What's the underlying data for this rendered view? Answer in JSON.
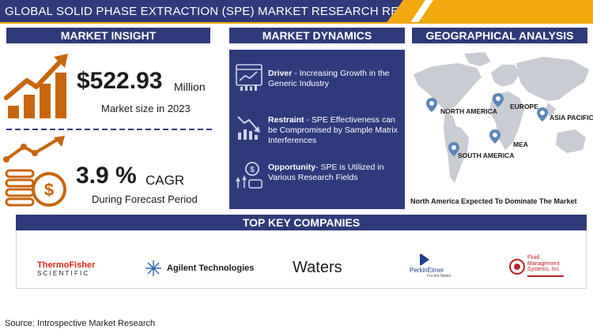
{
  "header": {
    "title": "GLOBAL SOLID PHASE EXTRACTION (SPE) MARKET RESEARCH REPORT"
  },
  "market_insight": {
    "heading": "MARKET INSIGHT",
    "market_size": {
      "value": "$522.93",
      "unit": "Million",
      "caption": "Market size in 2023"
    },
    "cagr": {
      "value": "3.9 %",
      "unit": "CAGR",
      "caption": "During Forecast Period"
    }
  },
  "market_dynamics": {
    "heading": "MARKET DYNAMICS",
    "items": [
      {
        "label": "Driver",
        "sep": " - ",
        "text": "Increasing Growth in the Generic Industry",
        "icon": "rising-chart-icon"
      },
      {
        "label": "Restraint",
        "sep": " - ",
        "text": "SPE Effectiveness can be Compromised by Sample Matrix Interferences",
        "icon": "falling-chart-icon"
      },
      {
        "label": "Opportunity",
        "sep": "- ",
        "text": "SPE is Utilized in Various Research Fields",
        "icon": "growth-coin-icon"
      }
    ]
  },
  "geographical_analysis": {
    "heading": "GEOGRAPHICAL ANALYSIS",
    "regions": [
      "NORTH AMERICA",
      "EUROPE",
      "ASIA PACIFIC",
      "MEA",
      "SOUTH AMERICA"
    ],
    "note": "North America Expected To Dominate The Market"
  },
  "top_key_companies": {
    "heading": "TOP KEY COMPANIES",
    "companies": [
      {
        "name_line1": "ThermoFisher",
        "name_line2": "SCIENTIFIC"
      },
      {
        "name": "Agilent Technologies"
      },
      {
        "name": "Waters"
      },
      {
        "name": "PerkinElmer",
        "tagline": "For the Better"
      },
      {
        "name_line1": "Fluid",
        "name_line2": "Management",
        "name_line3": "Systems, Inc."
      }
    ]
  },
  "source": "Source: Introspective Market Research",
  "colors": {
    "navy": "#2f3a7a",
    "accent_orange": "#c8660f",
    "gold": "#f2a90f",
    "map_gray": "#c9ccd3",
    "pin_blue": "#5b86b7"
  }
}
